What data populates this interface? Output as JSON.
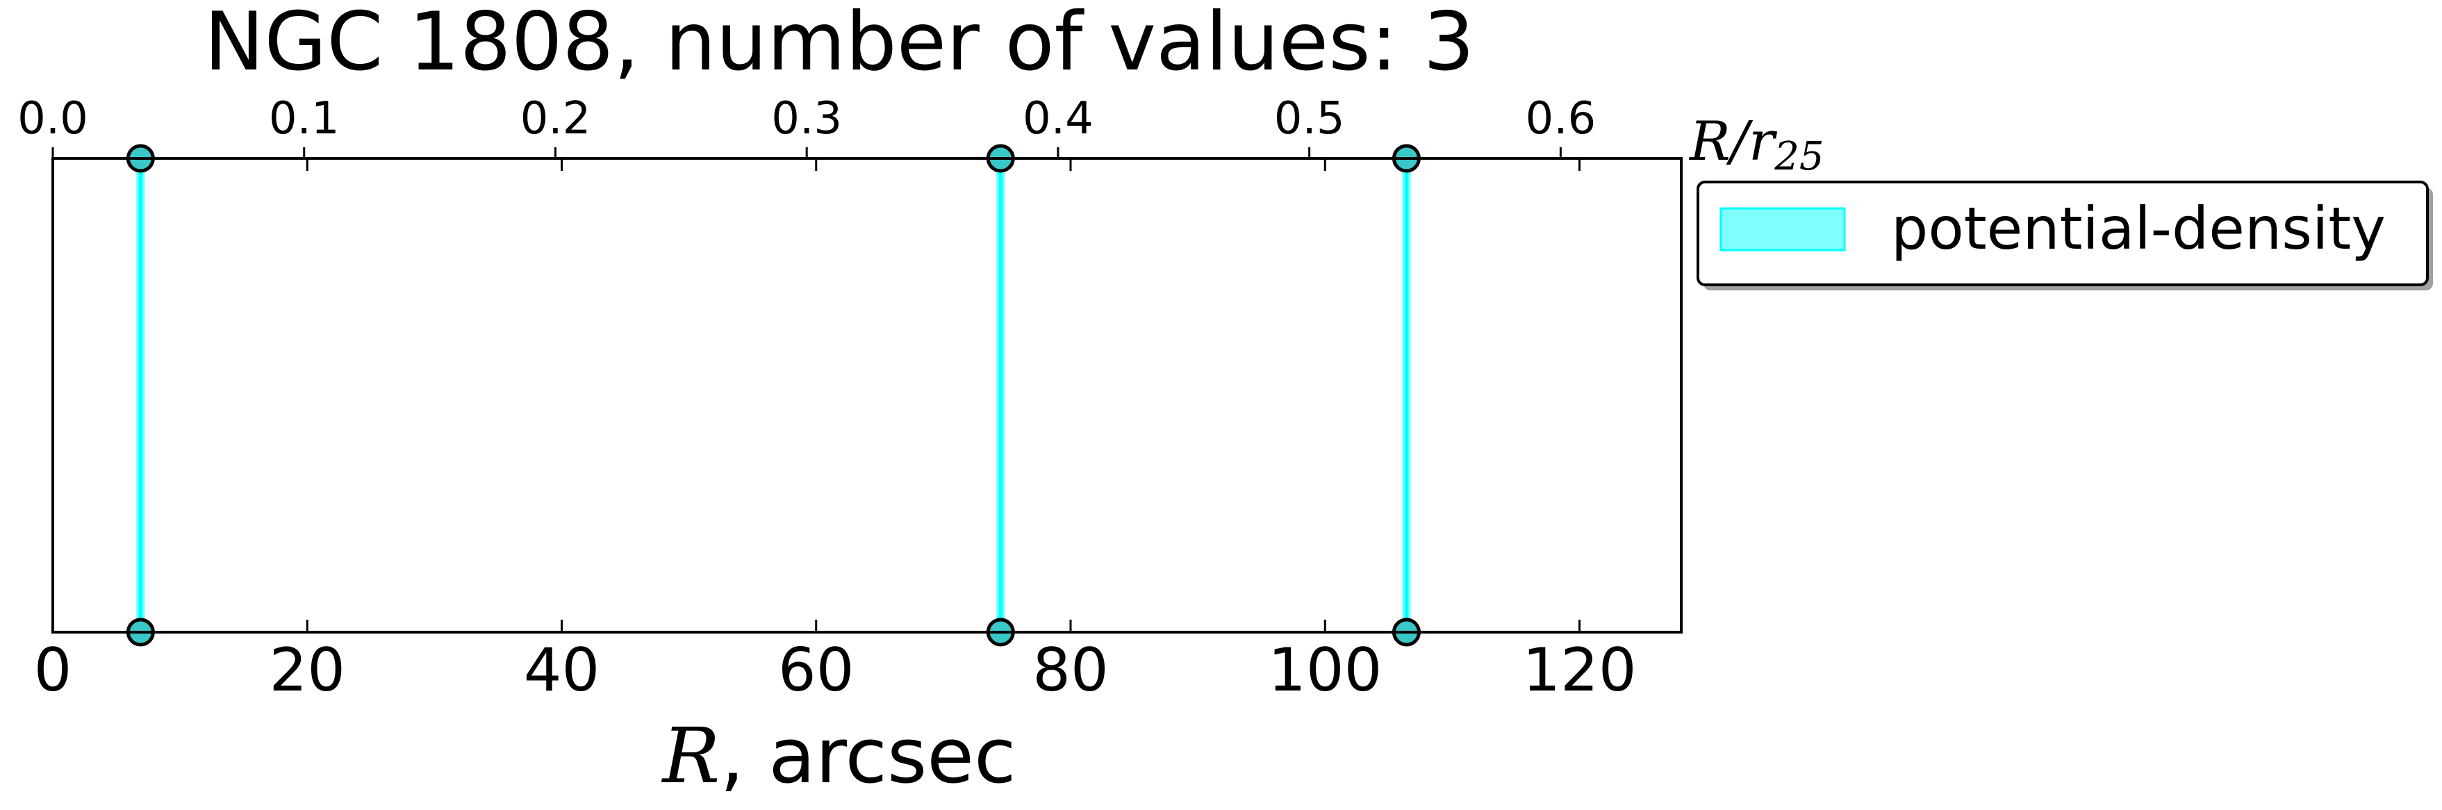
{
  "chart_data": {
    "type": "scatter",
    "title": "NGC 1808, number of values: 3",
    "xlabel_prefix": "R",
    "xlabel_suffix": ", arcsec",
    "top_axis_label_main": "R/r",
    "top_axis_label_sub": "25",
    "xlim": [
      0,
      128
    ],
    "xticks": [
      "0",
      "20",
      "40",
      "60",
      "80",
      "100",
      "120"
    ],
    "xtick_values": [
      0,
      20,
      40,
      60,
      80,
      100,
      120
    ],
    "top_xlim": [
      0,
      0.648
    ],
    "top_xticks": [
      "0.0",
      "0.1",
      "0.2",
      "0.3",
      "0.4",
      "0.5",
      "0.6"
    ],
    "top_xtick_values": [
      0.0,
      0.1,
      0.2,
      0.3,
      0.4,
      0.5,
      0.6
    ],
    "series": [
      {
        "name": "potential-density",
        "x": [
          6.9,
          74.5,
          106.4
        ],
        "color": "#00ffff"
      }
    ],
    "legend_position": "outside-right-top",
    "grid": false
  }
}
